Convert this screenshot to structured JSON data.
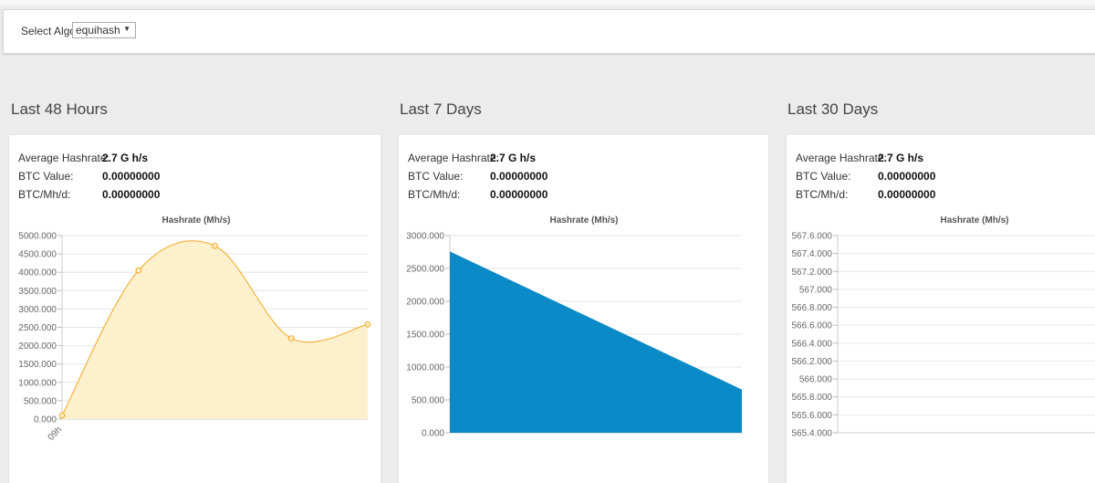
{
  "algo": {
    "label": "Select Algo:",
    "selected": "equihash"
  },
  "panels": [
    {
      "title": "Last 48 Hours",
      "stats": [
        {
          "label": "Average Hashrate:",
          "value": "2.7 G h/s"
        },
        {
          "label": "BTC Value:",
          "value": "0.00000000"
        },
        {
          "label": "BTC/Mh/d:",
          "value": "0.00000000"
        }
      ]
    },
    {
      "title": "Last 7 Days",
      "stats": [
        {
          "label": "Average Hashrate:",
          "value": "2.7 G h/s"
        },
        {
          "label": "BTC Value:",
          "value": "0.00000000"
        },
        {
          "label": "BTC/Mh/d:",
          "value": "0.00000000"
        }
      ]
    },
    {
      "title": "Last 30 Days",
      "stats": [
        {
          "label": "Average Hashrate:",
          "value": "2.7 G h/s"
        },
        {
          "label": "BTC Value:",
          "value": "0.00000000"
        },
        {
          "label": "BTC/Mh/d:",
          "value": "0.00000000"
        }
      ]
    }
  ],
  "chart_data": [
    {
      "type": "area",
      "title": "Hashrate (Mh/s)",
      "x": [
        "09h",
        "",
        "",
        "",
        ""
      ],
      "y": [
        100,
        4050,
        4720,
        2200,
        2580
      ],
      "ylim": [
        0,
        5000
      ],
      "ticks": [
        "0.000",
        "500.000",
        "1000.000",
        "1500.000",
        "2000.000",
        "2500.000",
        "3000.000",
        "3500.000",
        "4000.000",
        "4500.000",
        "5000.000"
      ],
      "color": "#f5a623",
      "fill": "#fdf0cc",
      "smooth": true,
      "grid": true
    },
    {
      "type": "area",
      "title": "Hashrate (Mh/s)",
      "x": [
        "",
        ""
      ],
      "y": [
        2750,
        650
      ],
      "ylim": [
        0,
        3000
      ],
      "ticks": [
        "0.000",
        "500.000",
        "1000.000",
        "1500.000",
        "2000.000",
        "2500.000",
        "3000.000"
      ],
      "color": "#0a8ac6",
      "fill": "#0a8ac6",
      "smooth": false,
      "grid": true
    },
    {
      "type": "line",
      "title": "Hashrate (Mh/s)",
      "x": [],
      "y": [],
      "ylim": [
        565.4,
        567.6
      ],
      "ticks": [
        "565.4.000",
        "565.6.000",
        "565.8.000",
        "566.000",
        "566.2.000",
        "566.4.000",
        "566.6.000",
        "566.8.000",
        "567.000",
        "567.2.000",
        "567.4.000",
        "567.6.000"
      ],
      "color": "#999999",
      "grid": true
    }
  ]
}
